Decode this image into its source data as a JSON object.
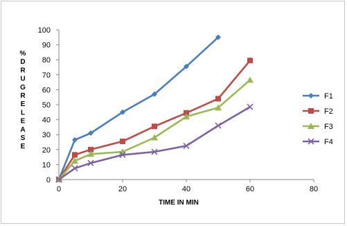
{
  "chart_data": {
    "type": "line",
    "xlabel": "TIME IN MIN",
    "ylabel": "% D R U G R E L E A S E",
    "ylabel_lines": [
      "%",
      "D",
      "R",
      "U",
      "G",
      "R",
      "E",
      "L",
      "E",
      "A",
      "S",
      "E"
    ],
    "xlim": [
      0,
      80
    ],
    "ylim": [
      0,
      100
    ],
    "xticks": [
      0,
      20,
      40,
      60,
      80
    ],
    "yticks": [
      0,
      10,
      20,
      30,
      40,
      50,
      60,
      70,
      80,
      90,
      100
    ],
    "grid": false,
    "legend_position": "right",
    "series": [
      {
        "name": "F1",
        "color": "#4a7ebb",
        "marker": "diamond",
        "points": [
          [
            0,
            0
          ],
          [
            5,
            26.5
          ],
          [
            10,
            31
          ],
          [
            20,
            45
          ],
          [
            30,
            57
          ],
          [
            40,
            75.5
          ],
          [
            50,
            95
          ]
        ]
      },
      {
        "name": "F2",
        "color": "#be4b48",
        "marker": "square",
        "points": [
          [
            0,
            0
          ],
          [
            5,
            16.5
          ],
          [
            10,
            20
          ],
          [
            20,
            25.5
          ],
          [
            30,
            35.5
          ],
          [
            40,
            44.5
          ],
          [
            50,
            54
          ],
          [
            60,
            79.5
          ]
        ]
      },
      {
        "name": "F3",
        "color": "#98b954",
        "marker": "triangle",
        "points": [
          [
            0,
            0
          ],
          [
            5,
            12.5
          ],
          [
            10,
            17
          ],
          [
            20,
            18.5
          ],
          [
            30,
            28
          ],
          [
            40,
            42
          ],
          [
            50,
            48
          ],
          [
            60,
            66.5
          ]
        ]
      },
      {
        "name": "F4",
        "color": "#7d60a0",
        "marker": "x",
        "points": [
          [
            0,
            0
          ],
          [
            5,
            7.5
          ],
          [
            10,
            11
          ],
          [
            20,
            16.5
          ],
          [
            30,
            18.5
          ],
          [
            40,
            22.5
          ],
          [
            50,
            36
          ],
          [
            60,
            48.5
          ]
        ]
      }
    ]
  }
}
